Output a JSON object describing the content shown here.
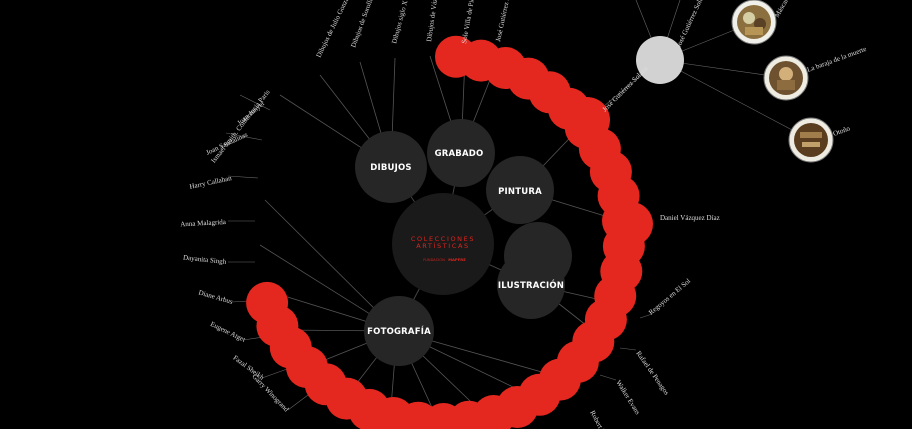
{
  "accent_red": "#e5281f",
  "center": {
    "title_line1": "COLECCIONES",
    "title_line2": "ARTÍSTICAS",
    "subtitle": "FUNDACIÓN",
    "brand": "MAPFRE"
  },
  "categories": [
    {
      "id": "dibujos",
      "label": "DIBUJOS"
    },
    {
      "id": "grabado",
      "label": "GRABADO"
    },
    {
      "id": "pintura",
      "label": "PINTURA"
    },
    {
      "id": "ilustracion",
      "label": "ILUSTRACIÓN"
    },
    {
      "id": "fotografia",
      "label": "FOTOGRAFÍA"
    }
  ],
  "artists_top": [
    {
      "label": "José Gutiérrez Solana"
    },
    {
      "label": "Sole Villa de Picasso"
    },
    {
      "label": "Dibujos de Vázquez Díaz"
    },
    {
      "label": "Dibujos siglo XV"
    },
    {
      "label": "Dibujos de Sorolla Goya"
    },
    {
      "label": "Dibujos de Julio González Grupo"
    }
  ],
  "artists_left": [
    {
      "label": "Ismael Smith. Conferencia Paris"
    },
    {
      "label": "Joan Junyer"
    },
    {
      "label": "Joan Sandalinas"
    },
    {
      "label": "Harry Callahan"
    },
    {
      "label": "Anna Malagrida"
    },
    {
      "label": "Dayanita Singh"
    },
    {
      "label": "Diane Arbus"
    },
    {
      "label": "Eugene Atget"
    },
    {
      "label": "Fazal Sheikh"
    },
    {
      "label": "Garry Winogrand"
    }
  ],
  "artists_right": [
    {
      "label": "José Gutiérrez Solana"
    },
    {
      "label": "Daniel Vázquez Díaz"
    },
    {
      "label": "Regoyos en El Sol"
    },
    {
      "label": "Rafael de Penagos"
    },
    {
      "label": "Walker Evans"
    },
    {
      "label": "Robert Frank"
    }
  ],
  "active_node": {
    "label": "José Gutiérrez Solana"
  },
  "artworks": [
    {
      "label": "Máscaras",
      "icon": "artwork-masks-thumbnail"
    },
    {
      "label": "La baraja de la muerte",
      "icon": "artwork-baraja-thumbnail"
    },
    {
      "label": "Otoño",
      "icon": "artwork-otono-thumbnail"
    }
  ]
}
